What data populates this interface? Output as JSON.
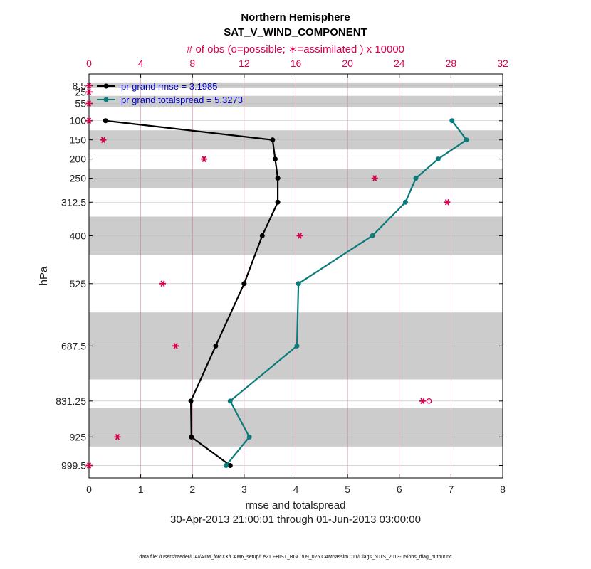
{
  "chart_data": {
    "type": "line",
    "title": "Northern Hemisphere",
    "subtitle": "SAT_V_WIND_COMPONENT",
    "top_axis_label": "# of obs (o=possible; ∗=assimilated ) x 10000",
    "xlabel": "rmse and totalspread",
    "ylabel": "hPa",
    "date_range": "30-Apr-2013 21:00:01 through 01-Jun-2013 03:00:00",
    "footer": "data file: /Users/raeder/DAI/ATM_forcXX/CAM6_setup/f.e21.FHIST_BGC.f09_025.CAM6assim.011/Diags_NTrS_2013-05/obs_diag_output.nc",
    "xlim": [
      0,
      8
    ],
    "x_ticks": [
      "0",
      "1",
      "2",
      "3",
      "4",
      "5",
      "6",
      "7",
      "8"
    ],
    "top_xlim": [
      0,
      32
    ],
    "top_ticks": [
      "0",
      "4",
      "8",
      "12",
      "16",
      "20",
      "24",
      "28",
      "32"
    ],
    "y_levels": [
      "8.5",
      "25",
      "55",
      "100",
      "150",
      "200",
      "250",
      "312.5",
      "400",
      "525",
      "687.5",
      "831.25",
      "925",
      "999.5"
    ],
    "shaded_bands_hPa": [
      [
        0,
        15
      ],
      [
        35,
        65
      ],
      [
        125,
        175
      ],
      [
        225,
        275
      ],
      [
        350,
        450
      ],
      [
        600,
        775
      ],
      [
        850,
        950
      ]
    ],
    "grid": true,
    "legend_position": "top-left",
    "colors": {
      "rmse": "#000000",
      "spread": "#0a7a7a",
      "obs": "#d6004f",
      "band": "#cccccc"
    },
    "series": [
      {
        "name": "pr grand rmse = 3.1985",
        "pressure": [
          100,
          150,
          200,
          250,
          312.5,
          400,
          525,
          687.5,
          831.25,
          925,
          999.5
        ],
        "values": [
          0.32,
          3.55,
          3.6,
          3.65,
          3.65,
          3.35,
          3.0,
          2.45,
          1.97,
          1.98,
          2.73
        ]
      },
      {
        "name": "pr grand totalspread = 5.3273",
        "pressure": [
          100,
          150,
          200,
          250,
          312.5,
          400,
          525,
          687.5,
          831.25,
          925,
          999.5
        ],
        "values": [
          7.02,
          7.3,
          6.75,
          6.32,
          6.12,
          5.48,
          4.05,
          4.02,
          2.73,
          3.1,
          2.65
        ]
      }
    ],
    "obs_counts_x10000": {
      "pressure": [
        8.5,
        25,
        55,
        100,
        150,
        200,
        250,
        312.5,
        400,
        525,
        687.5,
        831.25,
        925,
        999.5
      ],
      "assimilated": [
        0.0,
        0.0,
        0.0,
        0.0,
        1.1,
        8.9,
        22.1,
        27.7,
        16.3,
        5.7,
        6.7,
        25.8,
        2.2,
        0.0
      ],
      "possible": [
        0.0,
        0.0,
        0.0,
        0.0,
        1.1,
        8.9,
        22.1,
        27.7,
        16.3,
        5.7,
        6.7,
        26.3,
        2.2,
        0.0
      ]
    }
  }
}
